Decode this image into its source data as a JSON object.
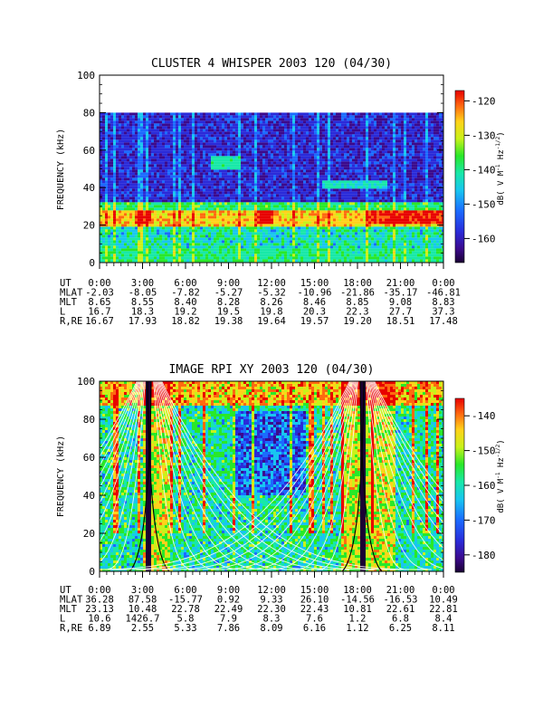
{
  "chart_data": [
    {
      "type": "heatmap",
      "title": "CLUSTER 4 WHISPER 2003 120 (04/30)",
      "ylabel": "FREQUENCY (kHz)",
      "ylim": [
        0,
        100
      ],
      "yticks": [
        "0",
        "20",
        "40",
        "60",
        "80",
        "100"
      ],
      "data_max_frequency_khz": 80,
      "colorbar": {
        "label": "dB( V M⁻¹ Hz⁻¹ᐟ²)",
        "label_parts": [
          "dB( V M",
          "-1",
          " Hz",
          "-1/2",
          ")"
        ],
        "ticks": [
          "-120",
          "-130",
          "-140",
          "-150",
          "-160"
        ],
        "range": [
          -167,
          -117
        ]
      },
      "ephemeris": {
        "labels": [
          "UT",
          "MLAT",
          "MLT",
          "L",
          "R,RE"
        ],
        "UT": [
          "0:00",
          "3:00",
          "6:00",
          "9:00",
          "12:00",
          "15:00",
          "18:00",
          "21:00",
          "0:00"
        ],
        "MLAT": [
          "-2.03",
          "-8.05",
          "-7.82",
          "-5.27",
          "-5.32",
          "-10.96",
          "-21.86",
          "-35.17",
          "-46.81"
        ],
        "MLT": [
          "8.65",
          "8.55",
          "8.40",
          "8.28",
          "8.26",
          "8.46",
          "8.85",
          "9.08",
          "8.83"
        ],
        "L": [
          "16.7",
          "18.3",
          "19.2",
          "19.5",
          "19.8",
          "20.3",
          "22.3",
          "27.7",
          "37.3"
        ],
        "R,RE": [
          "16.67",
          "17.93",
          "18.82",
          "19.38",
          "19.64",
          "19.57",
          "19.20",
          "18.51",
          "17.48"
        ]
      }
    },
    {
      "type": "heatmap",
      "title": "IMAGE RPI XY 2003 120 (04/30)",
      "ylabel": "FREQUENCY (kHz)",
      "ylim": [
        0,
        100
      ],
      "yticks": [
        "0",
        "20",
        "40",
        "60",
        "80",
        "100"
      ],
      "colorbar": {
        "label": "dB( V M⁻¹ Hz⁻¹ᐟ²)",
        "label_parts": [
          "dB( V M",
          "-1",
          " Hz",
          "-1/2",
          ")"
        ],
        "ticks": [
          "-140",
          "-150",
          "-160",
          "-170",
          "-180"
        ],
        "range": [
          -185,
          -135
        ]
      },
      "ephemeris": {
        "labels": [
          "UT",
          "MLAT",
          "MLT",
          "L",
          "R,RE"
        ],
        "UT": [
          "0:00",
          "3:00",
          "6:00",
          "9:00",
          "12:00",
          "15:00",
          "18:00",
          "21:00",
          "0:00"
        ],
        "MLAT": [
          "36.28",
          "87.58",
          "-15.77",
          "0.92",
          "9.33",
          "26.10",
          "-14.56",
          "-16.53",
          "10.49"
        ],
        "MLT": [
          "23.13",
          "10.48",
          "22.78",
          "22.49",
          "22.30",
          "22.43",
          "10.81",
          "22.61",
          "22.81"
        ],
        "L": [
          "10.6",
          "1426.7",
          "5.8",
          "7.9",
          "8.3",
          "7.6",
          "1.2",
          "6.8",
          "8.4"
        ],
        "R,RE": [
          "6.89",
          "2.55",
          "5.33",
          "7.86",
          "8.09",
          "6.16",
          "1.12",
          "6.25",
          "8.11"
        ]
      }
    }
  ]
}
